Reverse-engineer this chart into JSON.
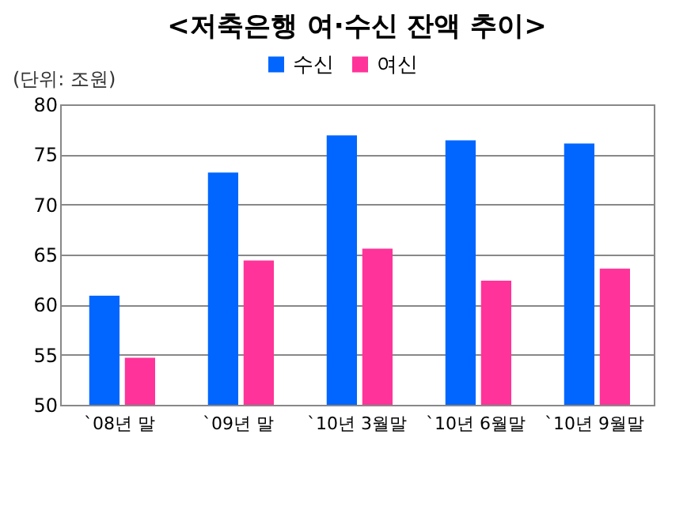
{
  "chart_data": {
    "type": "bar",
    "title": "<저축은행 여·수신 잔액 추이>",
    "annotations": [
      "(단위: 조원)"
    ],
    "categories": [
      "`08년 말",
      "`09년 말",
      "`10년 3월말",
      "`10년 6월말",
      "`10년 9월말"
    ],
    "series": [
      {
        "name": "수신",
        "color": "#0066ff",
        "values": [
          60.9,
          73.2,
          76.9,
          76.4,
          76.1
        ]
      },
      {
        "name": "여신",
        "color": "#ff3399",
        "values": [
          54.7,
          64.4,
          65.6,
          62.4,
          63.6
        ]
      }
    ],
    "ylim": [
      50,
      80
    ],
    "yticks": [
      50,
      55,
      60,
      65,
      70,
      75,
      80
    ],
    "grid": "y",
    "legend": "top"
  }
}
